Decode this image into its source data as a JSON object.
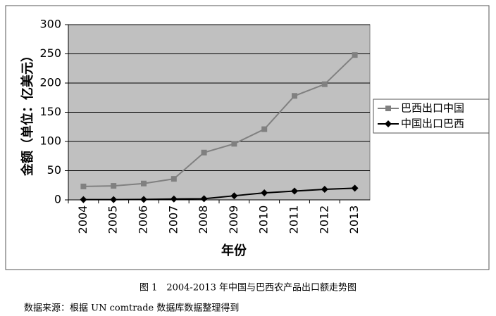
{
  "chart_data": {
    "type": "line",
    "xlabel": "年份",
    "ylabel": "金额（单位：亿美元）",
    "categories": [
      "2004",
      "2005",
      "2006",
      "2007",
      "2008",
      "2009",
      "2010",
      "2011",
      "2012",
      "2013"
    ],
    "series": [
      {
        "name": "巴西出口中国",
        "color": "#808080",
        "marker": "square",
        "values": [
          23,
          24,
          28,
          36,
          81,
          96,
          121,
          178,
          198,
          248
        ]
      },
      {
        "name": "中国出口巴西",
        "color": "#000000",
        "marker": "diamond",
        "values": [
          0.5,
          0.5,
          0.8,
          1.5,
          2,
          7,
          12,
          15,
          18,
          20
        ]
      }
    ],
    "ylim": [
      0,
      300
    ],
    "yticks": [
      0,
      50,
      100,
      150,
      200,
      250,
      300
    ],
    "grid": true,
    "legend": "right",
    "caption": "图 1　2004-2013 年中国与巴西农产品出口额走势图",
    "source": "数据来源：根据 UN comtrade 数据库数据整理得到"
  }
}
